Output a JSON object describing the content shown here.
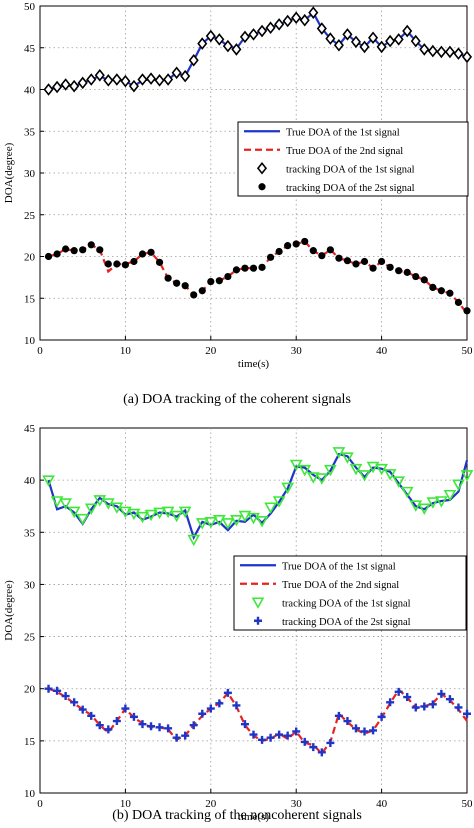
{
  "charts": [
    {
      "type": "line",
      "xlabel": "time(s)",
      "ylabel": "DOA(degree)",
      "xlim": [
        0,
        50
      ],
      "ylim": [
        10,
        50
      ],
      "xticks": [
        0,
        10,
        20,
        30,
        40,
        50
      ],
      "yticks": [
        10,
        15,
        20,
        25,
        30,
        35,
        40,
        45,
        50
      ],
      "grid": true,
      "caption": "(a)  DOA tracking of the coherent signals",
      "legend_position": "right-middle",
      "series": [
        {
          "name": "True DOA of the 1st signal",
          "style": "line",
          "color": "#1f35c8",
          "x": [
            1,
            2,
            3,
            4,
            5,
            6,
            7,
            8,
            9,
            10,
            11,
            12,
            13,
            14,
            15,
            16,
            17,
            18,
            19,
            20,
            21,
            22,
            23,
            24,
            25,
            26,
            27,
            28,
            29,
            30,
            31,
            32,
            33,
            34,
            35,
            36,
            37,
            38,
            39,
            40,
            41,
            42,
            43,
            44,
            45,
            46,
            47,
            48,
            49,
            50
          ],
          "y": [
            40,
            40.3,
            40.5,
            40.4,
            40.8,
            41.2,
            41.6,
            41.1,
            41.2,
            41.0,
            40.4,
            41.1,
            41.2,
            41.1,
            41.2,
            42.0,
            41.6,
            43.5,
            45.5,
            46.4,
            46.0,
            45.2,
            44.9,
            46.3,
            46.6,
            47.0,
            47.4,
            47.8,
            48.2,
            48.6,
            48.3,
            49.2,
            47.3,
            46.1,
            45.3,
            46.6,
            45.7,
            45.1,
            46.2,
            45.1,
            45.8,
            46.0,
            47.0,
            45.8,
            44.8,
            44.6,
            44.5,
            44.5,
            44.3,
            43.9
          ]
        },
        {
          "name": "True DOA of the 2nd signal",
          "style": "dashed",
          "color": "#e8231f",
          "x": [
            1,
            2,
            3,
            4,
            5,
            6,
            7,
            8,
            9,
            10,
            11,
            12,
            13,
            14,
            15,
            16,
            17,
            18,
            19,
            20,
            21,
            22,
            23,
            24,
            25,
            26,
            27,
            28,
            29,
            30,
            31,
            32,
            33,
            34,
            35,
            36,
            37,
            38,
            39,
            40,
            41,
            42,
            43,
            44,
            45,
            46,
            47,
            48,
            49,
            50
          ],
          "y": [
            20,
            20.3,
            20.9,
            20.7,
            20.8,
            21.4,
            20.8,
            18.2,
            19.1,
            19.1,
            19.4,
            20.3,
            20.5,
            19.3,
            17.4,
            16.8,
            16.5,
            15.4,
            15.9,
            17.0,
            17.1,
            17.6,
            18.4,
            18.6,
            18.6,
            18.7,
            19.9,
            20.6,
            21.3,
            21.5,
            21.8,
            20.7,
            20.1,
            20.8,
            19.8,
            19.5,
            19.1,
            19.4,
            18.6,
            19.4,
            18.7,
            18.3,
            18.1,
            17.6,
            17.2,
            16.3,
            15.9,
            15.6,
            14.5,
            13.2
          ]
        },
        {
          "name": "tracking DOA of the 1st signal",
          "style": "diamond",
          "color": "#000000",
          "x": [
            1,
            2,
            3,
            4,
            5,
            6,
            7,
            8,
            9,
            10,
            11,
            12,
            13,
            14,
            15,
            16,
            17,
            18,
            19,
            20,
            21,
            22,
            23,
            24,
            25,
            26,
            27,
            28,
            29,
            30,
            31,
            32,
            33,
            34,
            35,
            36,
            37,
            38,
            39,
            40,
            41,
            42,
            43,
            44,
            45,
            46,
            47,
            48,
            49,
            50
          ],
          "y": [
            40,
            40.3,
            40.6,
            40.4,
            40.8,
            41.2,
            41.7,
            41.1,
            41.2,
            41.0,
            40.4,
            41.2,
            41.3,
            41.1,
            41.2,
            42.0,
            41.6,
            43.5,
            45.5,
            46.4,
            46.0,
            45.2,
            44.8,
            46.3,
            46.6,
            47.0,
            47.4,
            47.8,
            48.2,
            48.6,
            48.3,
            49.2,
            47.3,
            46.1,
            45.3,
            46.6,
            45.7,
            45.1,
            46.2,
            45.1,
            45.8,
            46.0,
            47.0,
            45.8,
            44.8,
            44.6,
            44.5,
            44.5,
            44.3,
            43.9
          ]
        },
        {
          "name": "tracking DOA of the 2st signal",
          "style": "dot",
          "color": "#000000",
          "x": [
            1,
            2,
            3,
            4,
            5,
            6,
            7,
            8,
            9,
            10,
            11,
            12,
            13,
            14,
            15,
            16,
            17,
            18,
            19,
            20,
            21,
            22,
            23,
            24,
            25,
            26,
            27,
            28,
            29,
            30,
            31,
            32,
            33,
            34,
            35,
            36,
            37,
            38,
            39,
            40,
            41,
            42,
            43,
            44,
            45,
            46,
            47,
            48,
            49,
            50
          ],
          "y": [
            20,
            20.3,
            20.9,
            20.7,
            20.8,
            21.4,
            20.8,
            19.1,
            19.1,
            19.0,
            19.4,
            20.3,
            20.5,
            19.3,
            17.4,
            16.8,
            16.5,
            15.4,
            15.9,
            17.0,
            17.1,
            17.6,
            18.4,
            18.6,
            18.6,
            18.7,
            19.9,
            20.6,
            21.3,
            21.5,
            21.8,
            20.7,
            20.1,
            20.8,
            19.8,
            19.5,
            19.1,
            19.4,
            18.6,
            19.4,
            18.7,
            18.3,
            18.1,
            17.6,
            17.2,
            16.3,
            15.9,
            15.6,
            14.5,
            13.5
          ]
        }
      ]
    },
    {
      "type": "line",
      "xlabel": "time(s)",
      "ylabel": "DOA(degree)",
      "xlim": [
        0,
        50
      ],
      "ylim": [
        10,
        45
      ],
      "xticks": [
        0,
        10,
        20,
        30,
        40,
        50
      ],
      "yticks": [
        10,
        15,
        20,
        25,
        30,
        35,
        40,
        45
      ],
      "grid": true,
      "caption": "(b)  DOA tracking of the noncoherent signals",
      "legend_position": "right-middle",
      "series": [
        {
          "name": "True DOA of the 1st signal",
          "style": "line",
          "color": "#1f35c8",
          "x": [
            1,
            2,
            3,
            4,
            5,
            6,
            7,
            8,
            9,
            10,
            11,
            12,
            13,
            14,
            15,
            16,
            17,
            18,
            19,
            20,
            21,
            22,
            23,
            24,
            25,
            26,
            27,
            28,
            29,
            30,
            31,
            32,
            33,
            34,
            35,
            36,
            37,
            38,
            39,
            40,
            41,
            42,
            43,
            44,
            45,
            46,
            47,
            48,
            49,
            50
          ],
          "y": [
            40,
            37.2,
            37.5,
            36.9,
            35.8,
            37.2,
            38.3,
            37.7,
            37.5,
            36.7,
            36.9,
            36.2,
            36.5,
            36.9,
            36.8,
            36.5,
            37.1,
            34.5,
            36.0,
            35.7,
            36.0,
            35.2,
            36.1,
            36.0,
            36.7,
            35.9,
            36.8,
            37.9,
            39.2,
            41.3,
            41.2,
            40.5,
            40.0,
            40.9,
            42.5,
            42.3,
            41.2,
            40.3,
            41.2,
            41.1,
            40.8,
            39.7,
            38.6,
            37.5,
            37.2,
            37.8,
            38.0,
            38.1,
            38.9,
            41.9
          ]
        },
        {
          "name": "True DOA of the 2nd signal",
          "style": "dashed",
          "color": "#e8231f",
          "x": [
            1,
            2,
            3,
            4,
            5,
            6,
            7,
            8,
            9,
            10,
            11,
            12,
            13,
            14,
            15,
            16,
            17,
            18,
            19,
            20,
            21,
            22,
            23,
            24,
            25,
            26,
            27,
            28,
            29,
            30,
            31,
            32,
            33,
            34,
            35,
            36,
            37,
            38,
            39,
            40,
            41,
            42,
            43,
            44,
            45,
            46,
            47,
            48,
            49,
            50
          ],
          "y": [
            20,
            19.7,
            19.2,
            18.6,
            18.0,
            17.5,
            16.5,
            15.8,
            16.9,
            18.1,
            17.2,
            16.7,
            16.3,
            16.3,
            16.1,
            15.1,
            15.5,
            16.5,
            17.4,
            18.1,
            18.6,
            19.6,
            18.3,
            16.5,
            15.5,
            15.0,
            15.2,
            15.7,
            15.2,
            15.9,
            14.8,
            14.6,
            13.8,
            14.9,
            17.6,
            16.8,
            16.1,
            15.7,
            16.0,
            17.2,
            18.6,
            19.9,
            19.2,
            18.1,
            18.3,
            18.6,
            19.5,
            18.9,
            18.0,
            16.9
          ]
        },
        {
          "name": "tracking DOA of the 1st signal",
          "style": "triangle",
          "color": "#3ee83a",
          "x": [
            1,
            2,
            3,
            4,
            5,
            6,
            7,
            8,
            9,
            10,
            11,
            12,
            13,
            14,
            15,
            16,
            17,
            18,
            19,
            20,
            21,
            22,
            23,
            24,
            25,
            26,
            27,
            28,
            29,
            30,
            31,
            32,
            33,
            34,
            35,
            36,
            37,
            38,
            39,
            40,
            41,
            42,
            43,
            44,
            45,
            46,
            47,
            48,
            49,
            50
          ],
          "y": [
            40,
            38.0,
            37.8,
            37.0,
            36.3,
            37.3,
            38.1,
            37.8,
            37.4,
            37.0,
            36.8,
            36.5,
            36.7,
            36.9,
            37.0,
            36.6,
            37.0,
            34.3,
            35.9,
            36.0,
            36.2,
            35.9,
            36.2,
            36.6,
            36.4,
            36.1,
            37.4,
            38.0,
            39.3,
            41.5,
            41.0,
            40.3,
            40.2,
            41.0,
            42.7,
            42.2,
            41.1,
            40.5,
            41.3,
            41.1,
            40.6,
            39.9,
            38.9,
            37.6,
            37.3,
            37.9,
            38.0,
            38.6,
            39.6,
            40.5
          ]
        },
        {
          "name": "tracking DOA of the 2st signal",
          "style": "plus",
          "color": "#1f35c8",
          "x": [
            1,
            2,
            3,
            4,
            5,
            6,
            7,
            8,
            9,
            10,
            11,
            12,
            13,
            14,
            15,
            16,
            17,
            18,
            19,
            20,
            21,
            22,
            23,
            24,
            25,
            26,
            27,
            28,
            29,
            30,
            31,
            32,
            33,
            34,
            35,
            36,
            37,
            38,
            39,
            40,
            41,
            42,
            43,
            44,
            45,
            46,
            47,
            48,
            49,
            50
          ],
          "y": [
            20,
            19.8,
            19.3,
            18.7,
            18.0,
            17.4,
            16.5,
            16.1,
            16.9,
            18.1,
            17.3,
            16.6,
            16.4,
            16.3,
            16.2,
            15.3,
            15.5,
            16.5,
            17.6,
            18.1,
            18.6,
            19.6,
            18.4,
            16.6,
            15.6,
            15.1,
            15.3,
            15.6,
            15.5,
            15.9,
            14.9,
            14.4,
            13.9,
            14.8,
            17.4,
            16.9,
            16.2,
            15.9,
            16.0,
            17.3,
            18.7,
            19.7,
            19.2,
            18.2,
            18.3,
            18.5,
            19.5,
            19.0,
            18.2,
            17.6
          ]
        }
      ]
    }
  ]
}
